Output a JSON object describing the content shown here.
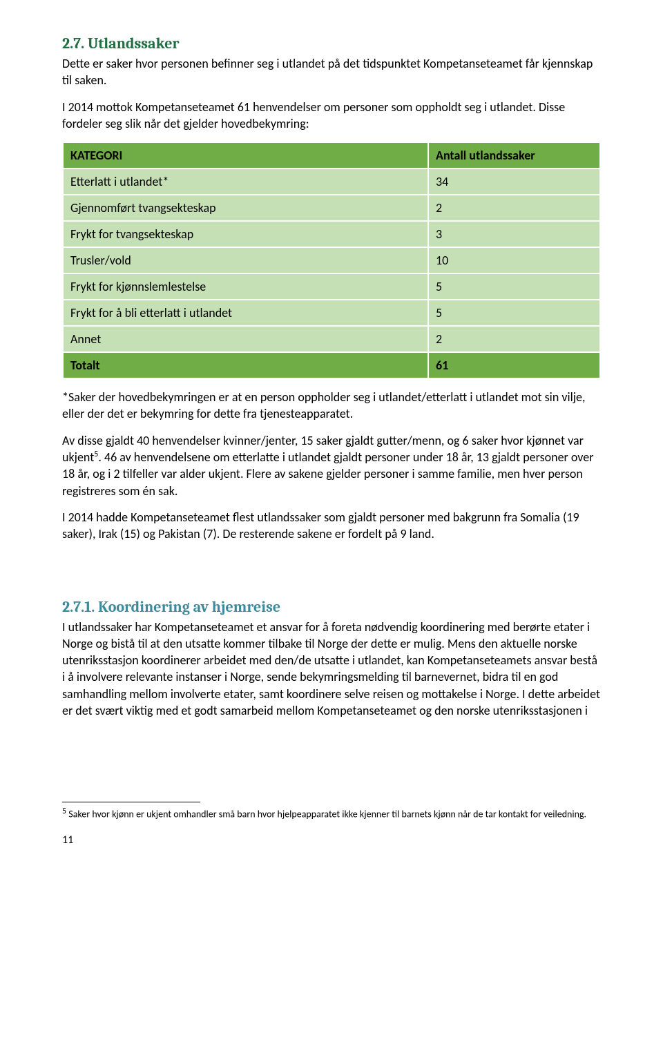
{
  "colors": {
    "heading27": "#1f6f43",
    "heading271": "#3c8a9b",
    "table_header_bg": "#70ad47",
    "table_row_bg": "#c5e0b4",
    "table_border": "#ffffff",
    "text": "#000000"
  },
  "section27": {
    "heading": "2.7. Utlandssaker",
    "p1": "Dette er saker hvor personen befinner seg i utlandet på det tidspunktet Kompetanseteamet får kjennskap til saken.",
    "p2": "I 2014 mottok Kompetanseteamet 61 henvendelser om personer som oppholdt seg i utlandet. Disse fordeler seg slik når det gjelder hovedbekymring:"
  },
  "table": {
    "columns": [
      "KATEGORI",
      "Antall utlandssaker"
    ],
    "rows": [
      {
        "label": "Etterlatt i utlandet*",
        "value": "34"
      },
      {
        "label": "Gjennomført tvangsekteskap",
        "value": "2"
      },
      {
        "label": "Frykt for tvangsekteskap",
        "value": "3"
      },
      {
        "label": "Trusler/vold",
        "value": "10"
      },
      {
        "label": "Frykt for kjønnslemlestelse",
        "value": "5"
      },
      {
        "label": "Frykt for å bli etterlatt i utlandet",
        "value": "5"
      },
      {
        "label": "Annet",
        "value": "2"
      }
    ],
    "total": {
      "label": "Totalt",
      "value": "61"
    }
  },
  "star_note": "*Saker der hovedbekymringen er at en person oppholder seg i utlandet/etterlatt i utlandet mot sin vilje, eller der det er bekymring for dette fra tjenesteapparatet.",
  "p_after_table_1a": "Av disse gjaldt 40 henvendelser kvinner/jenter, 15 saker gjaldt gutter/menn, og 6 saker hvor kjønnet var ukjent",
  "p_after_table_1_sup": "5",
  "p_after_table_1b": ". 46 av henvendelsene om etterlatte i utlandet gjaldt personer under 18 år, 13 gjaldt personer over 18 år, og i 2 tilfeller var alder ukjent. Flere av sakene gjelder personer i samme familie, men hver person registreres som én sak.",
  "p_after_table_2": " I 2014 hadde Kompetanseteamet flest utlandssaker som gjaldt personer med bakgrunn fra Somalia (19 saker), Irak (15) og Pakistan (7). De resterende sakene er fordelt på 9 land.",
  "section271": {
    "heading": "2.7.1. Koordinering av hjemreise",
    "p1": "I utlandssaker har Kompetanseteamet et ansvar for å foreta nødvendig koordinering med berørte etater i Norge og bistå til at den utsatte kommer tilbake til Norge der dette er mulig. Mens den aktuelle norske utenriksstasjon koordinerer arbeidet med den/de utsatte i utlandet, kan Kompetanseteamets ansvar bestå i å involvere relevante instanser i Norge, sende bekymringsmelding til barnevernet, bidra til en god samhandling mellom involverte etater, samt koordinere selve reisen og mottakelse i Norge. I dette arbeidet er det svært viktig med et godt samarbeid mellom Kompetanseteamet og den norske utenriksstasjonen i"
  },
  "footnote5_sup": "5",
  "footnote5": " Saker hvor kjønn er ukjent omhandler små barn hvor hjelpeapparatet ikke kjenner til barnets kjønn når de tar kontakt for veiledning.",
  "page_number": "11"
}
